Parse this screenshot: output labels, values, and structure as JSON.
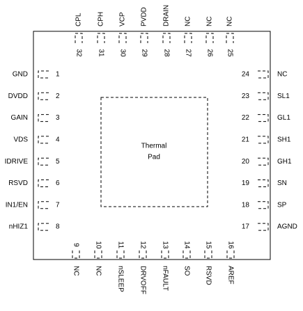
{
  "left_pins": [
    {
      "number": 1,
      "name": "GND"
    },
    {
      "number": 2,
      "name": "DVDD"
    },
    {
      "number": 3,
      "name": "GAIN"
    },
    {
      "number": 4,
      "name": "VDS"
    },
    {
      "number": 5,
      "name": "IDRIVE"
    },
    {
      "number": 6,
      "name": "RSVD"
    },
    {
      "number": 7,
      "name": "IN1/EN"
    },
    {
      "number": 8,
      "name": "nHIZ1"
    }
  ],
  "right_pins": [
    {
      "number": 24,
      "name": "NC"
    },
    {
      "number": 23,
      "name": "SL1"
    },
    {
      "number": 22,
      "name": "GL1"
    },
    {
      "number": 21,
      "name": "SH1"
    },
    {
      "number": 20,
      "name": "GH1"
    },
    {
      "number": 19,
      "name": "SN"
    },
    {
      "number": 18,
      "name": "SP"
    },
    {
      "number": 17,
      "name": "AGND"
    }
  ],
  "top_pins": [
    {
      "number": 32,
      "name": "CPL"
    },
    {
      "number": 31,
      "name": "CPH"
    },
    {
      "number": 30,
      "name": "VCP"
    },
    {
      "number": 29,
      "name": "PVDD"
    },
    {
      "number": 28,
      "name": "DRAIN"
    },
    {
      "number": 27,
      "name": "NC"
    },
    {
      "number": 26,
      "name": "NC"
    },
    {
      "number": 25,
      "name": "NC"
    }
  ],
  "bottom_pins": [
    {
      "number": 9,
      "name": "NC"
    },
    {
      "number": 10,
      "name": "NC"
    },
    {
      "number": 11,
      "name": "nSLEEP"
    },
    {
      "number": 12,
      "name": "DRVOFF"
    },
    {
      "number": 13,
      "name": "nFAULT"
    },
    {
      "number": 14,
      "name": "SO"
    },
    {
      "number": 15,
      "name": "RSVD"
    },
    {
      "number": 16,
      "name": "AREF"
    }
  ],
  "thermal_pad": {
    "label_lines": [
      "Thermal",
      "Pad"
    ]
  }
}
